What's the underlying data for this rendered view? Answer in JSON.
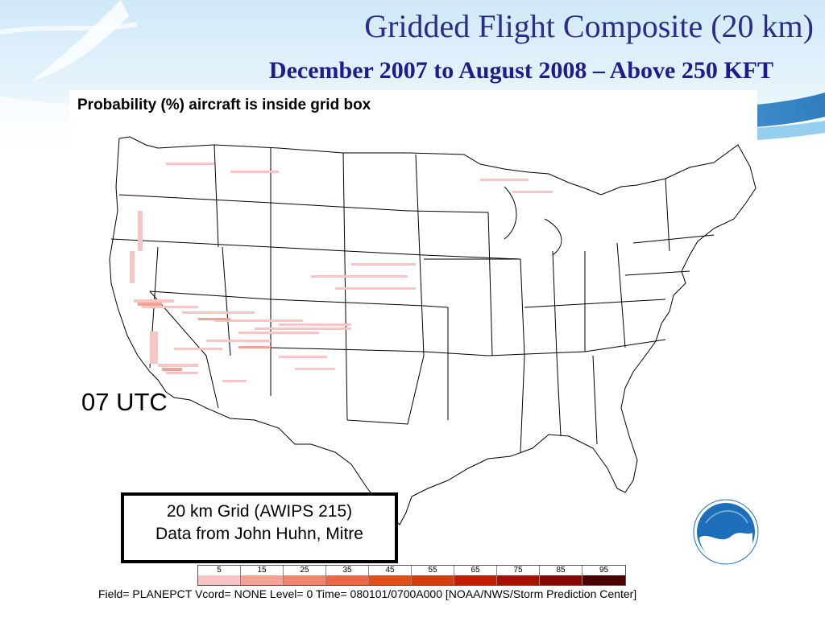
{
  "header": {
    "title": "Gridded Flight Composite (20 km)",
    "subtitle": "December 2007 to August 2008 – Above 250 KFT"
  },
  "map": {
    "heading": "Probability (%) aircraft is inside grid box",
    "time_label": "07 UTC",
    "info_box": {
      "line1": "20 km Grid (AWIPS 215)",
      "line2": "Data from John Huhn, Mitre"
    },
    "logo_text": "NOAA",
    "colors": {
      "background": "#ffffff",
      "state_lines": "#000000",
      "banner_blue": "#3a95d4",
      "title_color": "#2c2a8c"
    }
  },
  "legend": {
    "items": [
      {
        "label": "5",
        "color": "#f9c4c4"
      },
      {
        "label": "15",
        "color": "#f5a294"
      },
      {
        "label": "25",
        "color": "#f2836e"
      },
      {
        "label": "35",
        "color": "#ee6644"
      },
      {
        "label": "45",
        "color": "#e04f16"
      },
      {
        "label": "55",
        "color": "#d23e0a"
      },
      {
        "label": "65",
        "color": "#c02000"
      },
      {
        "label": "75",
        "color": "#a81000"
      },
      {
        "label": "85",
        "color": "#8a0600"
      },
      {
        "label": "95",
        "color": "#4d0000"
      }
    ]
  },
  "footer": {
    "text": "Field= PLANEPCT Vcord= NONE Level= 0 Time= 080101/0700A000 [NOAA/NWS/Storm Prediction Center]"
  }
}
